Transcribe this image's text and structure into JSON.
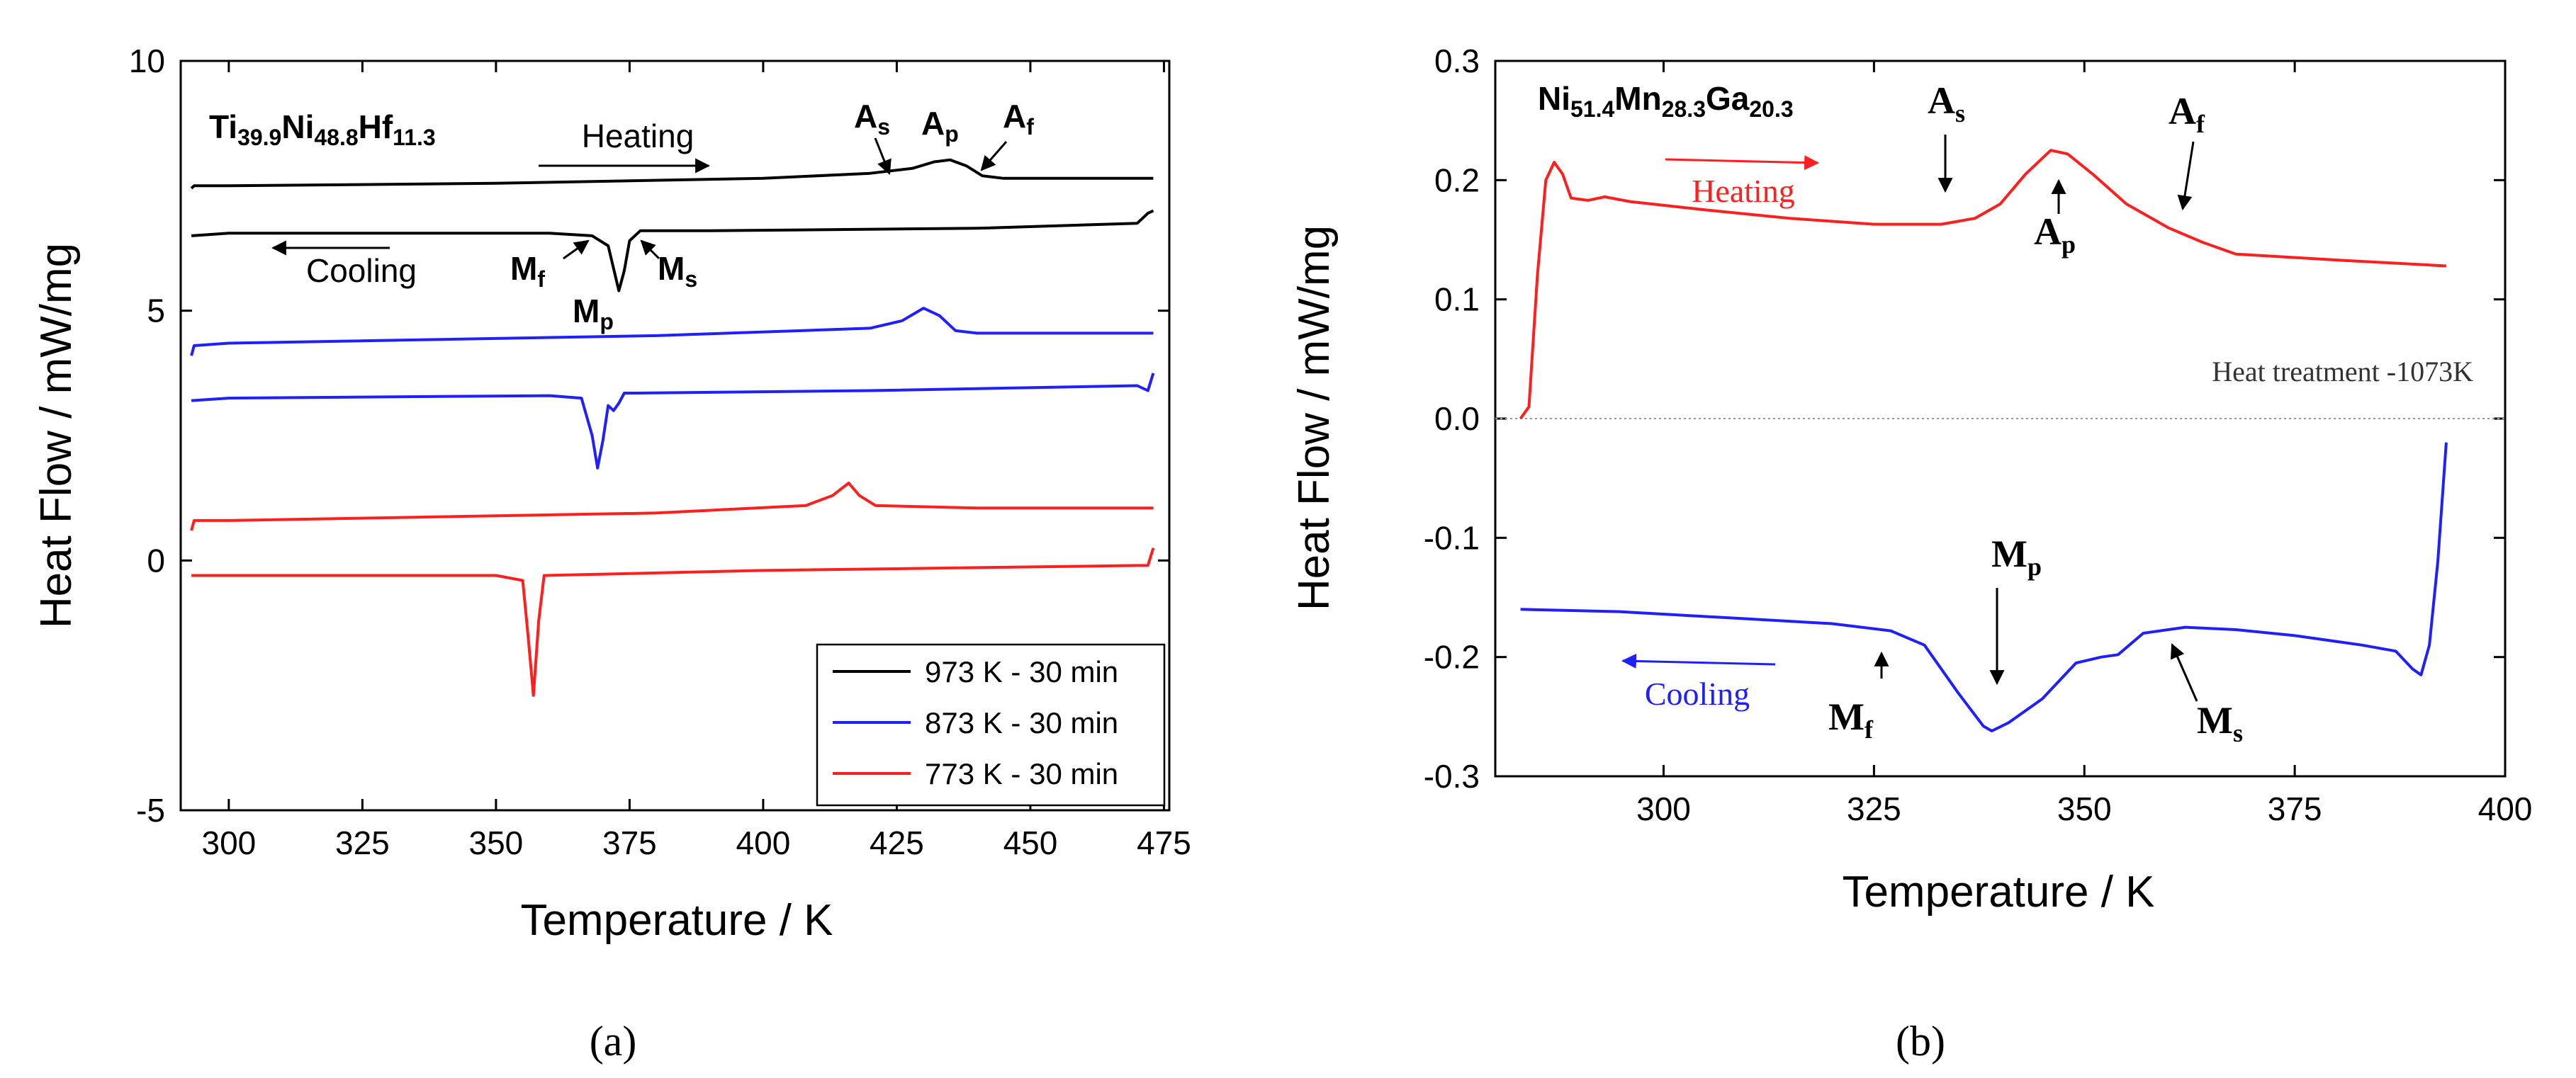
{
  "chart_data": [
    {
      "panel": "a",
      "type": "line",
      "caption": "(a)",
      "title": "Ti39.9Ni48.8Hf11.3",
      "title_parts": [
        [
          "Ti",
          ""
        ],
        [
          "39.9",
          "sub"
        ],
        [
          "Ni",
          ""
        ],
        [
          "48.8",
          "sub"
        ],
        [
          "Hf",
          ""
        ],
        [
          "11.3",
          "sub"
        ]
      ],
      "xlabel": "Temperature / K",
      "ylabel": "Heat Flow /    mW/mg",
      "xlim": [
        291,
        476
      ],
      "ylim": [
        -5,
        10
      ],
      "xticks": [
        300,
        325,
        350,
        375,
        400,
        425,
        450,
        475
      ],
      "yticks": [
        -5,
        0,
        5,
        10
      ],
      "legend_position": "bottom-right",
      "series": [
        {
          "name": "973 K - 30 min",
          "color": "#000000",
          "segment": "heating",
          "points": [
            [
              293,
              7.45
            ],
            [
              293.5,
              7.5
            ],
            [
              300,
              7.5
            ],
            [
              350,
              7.55
            ],
            [
              400,
              7.65
            ],
            [
              420,
              7.75
            ],
            [
              428,
              7.85
            ],
            [
              432,
              7.98
            ],
            [
              435,
              8.02
            ],
            [
              438,
              7.9
            ],
            [
              441,
              7.7
            ],
            [
              445,
              7.65
            ],
            [
              472,
              7.65
            ],
            [
              473,
              7.65
            ]
          ]
        },
        {
          "name": "973 K - 30 min",
          "color": "#000000",
          "segment": "cooling",
          "points": [
            [
              293,
              6.5
            ],
            [
              300,
              6.55
            ],
            [
              360,
              6.55
            ],
            [
              368,
              6.5
            ],
            [
              371,
              6.3
            ],
            [
              373,
              5.4
            ],
            [
              374,
              5.8
            ],
            [
              375,
              6.4
            ],
            [
              377,
              6.6
            ],
            [
              390,
              6.6
            ],
            [
              440,
              6.65
            ],
            [
              470,
              6.75
            ],
            [
              472,
              6.95
            ],
            [
              473,
              7.0
            ]
          ]
        },
        {
          "name": "873 K - 30 min",
          "color": "#1f1fff",
          "segment": "heating",
          "points": [
            [
              293,
              4.1
            ],
            [
              293.5,
              4.3
            ],
            [
              300,
              4.35
            ],
            [
              380,
              4.5
            ],
            [
              420,
              4.65
            ],
            [
              426,
              4.8
            ],
            [
              430,
              5.05
            ],
            [
              433,
              4.9
            ],
            [
              436,
              4.6
            ],
            [
              440,
              4.55
            ],
            [
              473,
              4.55
            ]
          ]
        },
        {
          "name": "873 K - 30 min",
          "color": "#1f1fff",
          "segment": "cooling",
          "points": [
            [
              293,
              3.2
            ],
            [
              300,
              3.25
            ],
            [
              360,
              3.3
            ],
            [
              366,
              3.25
            ],
            [
              368,
              2.5
            ],
            [
              369,
              1.85
            ],
            [
              370,
              2.4
            ],
            [
              371,
              3.1
            ],
            [
              372,
              3.0
            ],
            [
              373,
              3.15
            ],
            [
              374,
              3.35
            ],
            [
              376,
              3.35
            ],
            [
              420,
              3.4
            ],
            [
              470,
              3.5
            ],
            [
              472,
              3.4
            ],
            [
              473,
              3.75
            ]
          ]
        },
        {
          "name": "773 K - 30 min",
          "color": "#ff1f1f",
          "segment": "heating",
          "points": [
            [
              293,
              0.6
            ],
            [
              293.5,
              0.8
            ],
            [
              300,
              0.8
            ],
            [
              380,
              0.95
            ],
            [
              408,
              1.1
            ],
            [
              413,
              1.3
            ],
            [
              416,
              1.55
            ],
            [
              418,
              1.3
            ],
            [
              421,
              1.1
            ],
            [
              440,
              1.05
            ],
            [
              473,
              1.05
            ]
          ]
        },
        {
          "name": "773 K - 30 min",
          "color": "#ff1f1f",
          "segment": "cooling",
          "points": [
            [
              293,
              -0.3
            ],
            [
              300,
              -0.3
            ],
            [
              350,
              -0.3
            ],
            [
              355,
              -0.4
            ],
            [
              356,
              -1.5
            ],
            [
              357,
              -2.7
            ],
            [
              358,
              -1.2
            ],
            [
              359,
              -0.3
            ],
            [
              400,
              -0.2
            ],
            [
              470,
              -0.1
            ],
            [
              472,
              -0.1
            ],
            [
              473,
              0.25
            ]
          ]
        }
      ],
      "annotations": {
        "heating": "Heating",
        "cooling": "Cooling",
        "As": "A",
        "As_sub": "s",
        "Ap": "A",
        "Ap_sub": "p",
        "Af": "A",
        "Af_sub": "f",
        "Mf": "M",
        "Mf_sub": "f",
        "Mp": "M",
        "Mp_sub": "p",
        "Ms": "M",
        "Ms_sub": "s"
      }
    },
    {
      "panel": "b",
      "type": "line",
      "caption": "(b)",
      "title": "Ni51.4Mn28.3Ga20.3",
      "title_parts": [
        [
          "Ni",
          ""
        ],
        [
          "51.4",
          "sub"
        ],
        [
          "Mn",
          ""
        ],
        [
          "28.3",
          "sub"
        ],
        [
          "Ga",
          ""
        ],
        [
          "20.3",
          "sub"
        ]
      ],
      "xlabel": "Temperature / K",
      "ylabel": "Heat Flow /    mW/mg",
      "xlim": [
        280,
        400
      ],
      "ylim": [
        -0.3,
        0.3
      ],
      "xticks": [
        300,
        325,
        350,
        375,
        400
      ],
      "yticks": [
        0.3,
        0.2,
        0.1,
        0.0,
        -0.1,
        -0.2,
        -0.3
      ],
      "ytick_labels": [
        "0.3",
        "0.2",
        "0.1",
        "0.0",
        "-0.1",
        "-0.2",
        "-0.3"
      ],
      "zero_line": true,
      "series": [
        {
          "name": "Heating",
          "color": "#ff1f1f",
          "points": [
            [
              283,
              0.0
            ],
            [
              284,
              0.01
            ],
            [
              285,
              0.12
            ],
            [
              286,
              0.2
            ],
            [
              287,
              0.215
            ],
            [
              288,
              0.205
            ],
            [
              289,
              0.185
            ],
            [
              291,
              0.183
            ],
            [
              293,
              0.186
            ],
            [
              296,
              0.182
            ],
            [
              305,
              0.175
            ],
            [
              315,
              0.168
            ],
            [
              325,
              0.163
            ],
            [
              333,
              0.163
            ],
            [
              337,
              0.168
            ],
            [
              340,
              0.18
            ],
            [
              343,
              0.205
            ],
            [
              346,
              0.225
            ],
            [
              348,
              0.222
            ],
            [
              351,
              0.205
            ],
            [
              355,
              0.18
            ],
            [
              360,
              0.16
            ],
            [
              364,
              0.148
            ],
            [
              368,
              0.138
            ],
            [
              380,
              0.133
            ],
            [
              393,
              0.128
            ]
          ]
        },
        {
          "name": "Cooling",
          "color": "#1f1fff",
          "points": [
            [
              283,
              -0.16
            ],
            [
              295,
              -0.162
            ],
            [
              310,
              -0.168
            ],
            [
              320,
              -0.172
            ],
            [
              327,
              -0.178
            ],
            [
              331,
              -0.19
            ],
            [
              335,
              -0.23
            ],
            [
              338,
              -0.258
            ],
            [
              339,
              -0.262
            ],
            [
              341,
              -0.255
            ],
            [
              345,
              -0.235
            ],
            [
              349,
              -0.205
            ],
            [
              352,
              -0.2
            ],
            [
              354,
              -0.198
            ],
            [
              357,
              -0.18
            ],
            [
              362,
              -0.175
            ],
            [
              368,
              -0.177
            ],
            [
              375,
              -0.182
            ],
            [
              383,
              -0.19
            ],
            [
              387,
              -0.195
            ],
            [
              389,
              -0.21
            ],
            [
              390,
              -0.215
            ],
            [
              391,
              -0.19
            ],
            [
              392,
              -0.12
            ],
            [
              393,
              -0.02
            ]
          ]
        }
      ],
      "annotations": {
        "heating": "Heating",
        "cooling": "Cooling",
        "heat_treatment": "Heat treatment -1073K",
        "As": "A",
        "As_sub": "s",
        "Ap": "A",
        "Ap_sub": "p",
        "Af": "A",
        "Af_sub": "f",
        "Mf": "M",
        "Mf_sub": "f",
        "Mp": "M",
        "Mp_sub": "p",
        "Ms": "M",
        "Ms_sub": "s"
      }
    }
  ]
}
